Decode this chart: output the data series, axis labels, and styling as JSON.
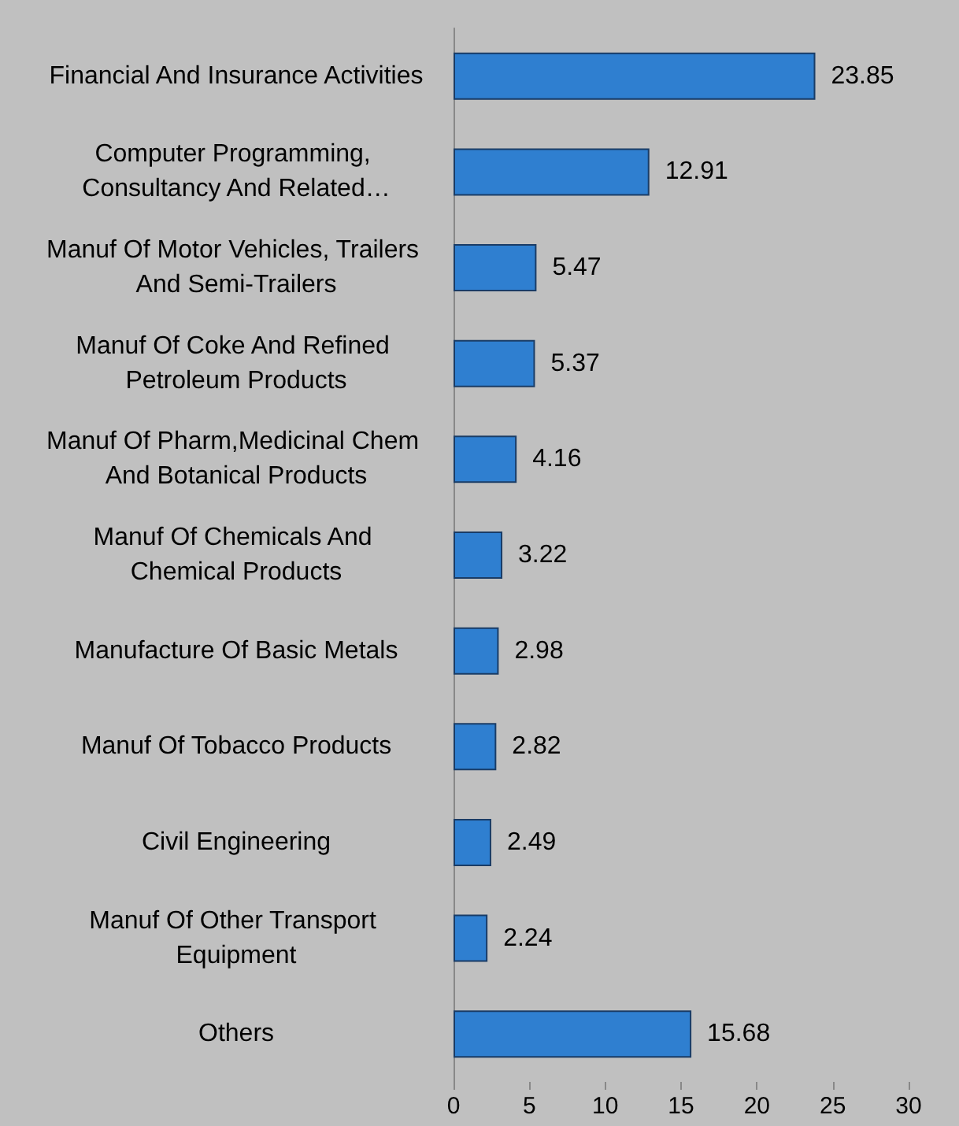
{
  "chart_data": {
    "type": "bar",
    "orientation": "horizontal",
    "categories": [
      "Financial And Insurance Activities",
      "Computer Programming, Consultancy And Related…",
      "Manuf Of Motor Vehicles, Trailers And Semi-Trailers",
      "Manuf Of Coke And Refined Petroleum Products",
      "Manuf Of Pharm,Medicinal Chem And Botanical Products",
      "Manuf Of Chemicals And Chemical Products",
      "Manufacture Of Basic Metals",
      "Manuf Of Tobacco Products",
      "Civil Engineering",
      "Manuf Of Other Transport Equipment",
      "Others"
    ],
    "values": [
      23.85,
      12.91,
      5.47,
      5.37,
      4.16,
      3.22,
      2.98,
      2.82,
      2.49,
      2.24,
      15.68
    ],
    "color": "#2f7fd0",
    "xlim": [
      0,
      30
    ],
    "xticks": [
      0,
      5,
      10,
      15,
      20,
      25,
      30
    ],
    "grid": false,
    "data_labels": true
  }
}
